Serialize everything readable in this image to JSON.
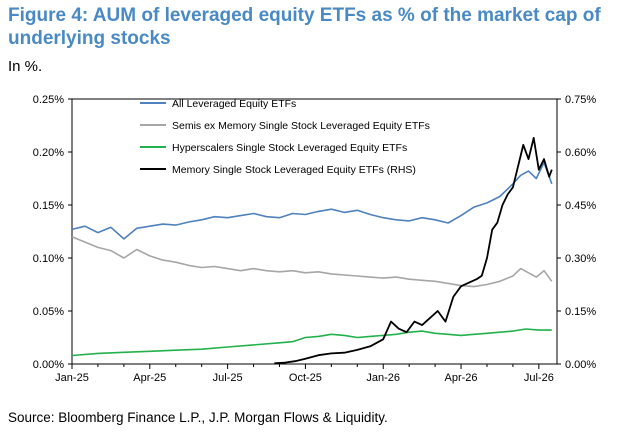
{
  "title": "Figure 4: AUM of leveraged equity ETFs as % of the market cap of underlying stocks",
  "subtitle": "In %.",
  "source": "Source: Bloomberg Finance L.P., J.P. Morgan Flows & Liquidity.",
  "colors": {
    "all": "#4f81bd",
    "semis": "#a6a6a6",
    "hyperscalers": "#22b14c",
    "memory": "#000000"
  },
  "chart_data": {
    "type": "line",
    "x_ticks": [
      "Jan-25",
      "Apr-25",
      "Jul-25",
      "Oct-25",
      "Jan-26",
      "Apr-26",
      "Jul-26"
    ],
    "left_ticks": [
      "0.00%",
      "0.05%",
      "0.10%",
      "0.15%",
      "0.20%",
      "0.25%"
    ],
    "right_ticks": [
      "0.00%",
      "0.15%",
      "0.30%",
      "0.45%",
      "0.60%",
      "0.75%"
    ],
    "ylim_left": [
      0,
      0.25
    ],
    "ylim_right": [
      0,
      0.75
    ],
    "x_range_months": [
      0,
      18.7
    ],
    "grid": false,
    "legend_position": "top-left",
    "series": [
      {
        "name": "All Leveraged Equity ETFs",
        "axis": "left",
        "color_key": "all",
        "x": [
          0,
          0.5,
          1,
          1.5,
          2,
          2.5,
          3,
          3.5,
          4,
          4.5,
          5,
          5.5,
          6,
          6.5,
          7,
          7.5,
          8,
          8.5,
          9,
          9.5,
          10,
          10.5,
          11,
          11.5,
          12,
          12.5,
          13,
          13.5,
          14,
          14.5,
          15,
          15.5,
          16,
          16.5,
          17,
          17.3,
          17.6,
          17.9,
          18.2,
          18.5
        ],
        "y": [
          0.127,
          0.13,
          0.124,
          0.129,
          0.118,
          0.128,
          0.13,
          0.132,
          0.131,
          0.134,
          0.136,
          0.139,
          0.138,
          0.14,
          0.142,
          0.139,
          0.138,
          0.142,
          0.141,
          0.144,
          0.146,
          0.143,
          0.145,
          0.141,
          0.138,
          0.136,
          0.135,
          0.138,
          0.136,
          0.133,
          0.14,
          0.148,
          0.152,
          0.158,
          0.17,
          0.178,
          0.182,
          0.175,
          0.19,
          0.17
        ]
      },
      {
        "name": "Semis ex Memory Single Stock Leveraged Equity ETFs",
        "axis": "left",
        "color_key": "semis",
        "x": [
          0,
          0.5,
          1,
          1.5,
          2,
          2.5,
          3,
          3.5,
          4,
          4.5,
          5,
          5.5,
          6,
          6.5,
          7,
          7.5,
          8,
          8.5,
          9,
          9.5,
          10,
          10.5,
          11,
          11.5,
          12,
          12.5,
          13,
          13.5,
          14,
          14.5,
          15,
          15.5,
          16,
          16.5,
          17,
          17.3,
          17.6,
          17.9,
          18.2,
          18.5
        ],
        "y": [
          0.12,
          0.115,
          0.11,
          0.107,
          0.1,
          0.108,
          0.102,
          0.098,
          0.096,
          0.093,
          0.091,
          0.092,
          0.09,
          0.088,
          0.09,
          0.088,
          0.087,
          0.088,
          0.086,
          0.087,
          0.085,
          0.084,
          0.083,
          0.082,
          0.081,
          0.082,
          0.08,
          0.079,
          0.078,
          0.076,
          0.074,
          0.073,
          0.075,
          0.078,
          0.083,
          0.09,
          0.086,
          0.082,
          0.088,
          0.078
        ]
      },
      {
        "name": "Hyperscalers Single Stock Leveraged Equity ETFs",
        "axis": "left",
        "color_key": "hyperscalers",
        "x": [
          0,
          1,
          2,
          3,
          4,
          5,
          6,
          7,
          8,
          8.5,
          9,
          9.5,
          10,
          10.5,
          11,
          11.5,
          12,
          12.5,
          13,
          13.5,
          14,
          14.5,
          15,
          15.5,
          16,
          16.5,
          17,
          17.5,
          18,
          18.5
        ],
        "y": [
          0.008,
          0.01,
          0.011,
          0.012,
          0.013,
          0.014,
          0.016,
          0.018,
          0.02,
          0.021,
          0.025,
          0.026,
          0.028,
          0.027,
          0.025,
          0.026,
          0.027,
          0.028,
          0.03,
          0.031,
          0.029,
          0.028,
          0.027,
          0.028,
          0.029,
          0.03,
          0.031,
          0.033,
          0.032,
          0.032
        ]
      },
      {
        "name": "Memory Single Stock Leveraged Equity ETFs (RHS)",
        "axis": "right",
        "color_key": "memory",
        "x": [
          7.8,
          8.2,
          8.6,
          9,
          9.5,
          10,
          10.5,
          11,
          11.5,
          12,
          12.3,
          12.6,
          12.9,
          13.2,
          13.5,
          13.8,
          14.1,
          14.4,
          14.7,
          15,
          15.3,
          15.6,
          15.8,
          16,
          16.2,
          16.4,
          16.6,
          16.8,
          17,
          17.2,
          17.4,
          17.6,
          17.8,
          18,
          18.2,
          18.4,
          18.5
        ],
        "y": [
          0.002,
          0.004,
          0.008,
          0.015,
          0.025,
          0.03,
          0.032,
          0.04,
          0.05,
          0.07,
          0.12,
          0.1,
          0.09,
          0.12,
          0.11,
          0.13,
          0.15,
          0.12,
          0.19,
          0.22,
          0.23,
          0.24,
          0.25,
          0.3,
          0.38,
          0.4,
          0.45,
          0.48,
          0.5,
          0.56,
          0.62,
          0.58,
          0.64,
          0.55,
          0.58,
          0.53,
          0.55
        ]
      }
    ]
  }
}
